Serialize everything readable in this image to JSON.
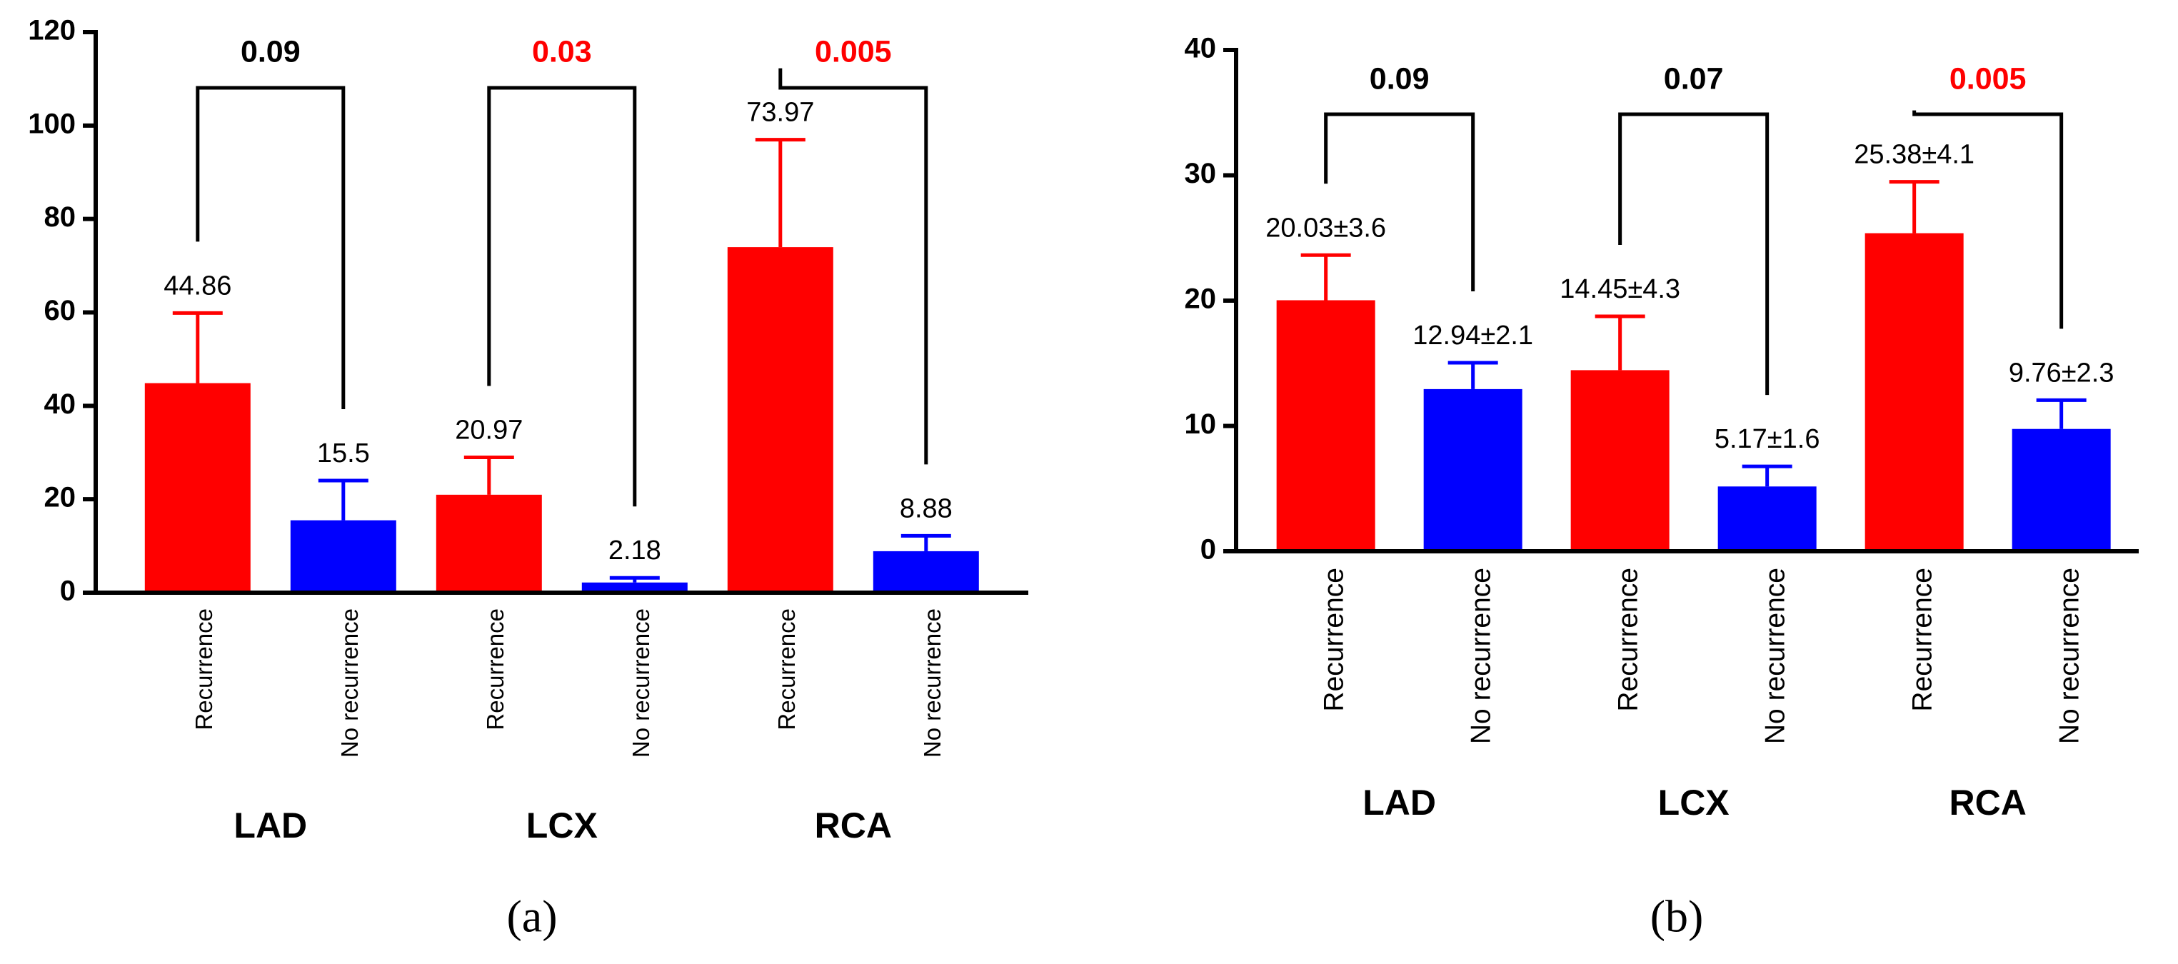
{
  "chart_data": [
    {
      "type": "bar",
      "caption": "(a)",
      "groups": [
        "LAD",
        "LCX",
        "RCA"
      ],
      "categories": [
        "Recurrence",
        "No recurrence",
        "Recurrence",
        "No recurrence",
        "Recurrence",
        "No recurrence"
      ],
      "values": [
        44.86,
        15.5,
        20.97,
        2.18,
        73.97,
        8.88
      ],
      "errors": [
        15,
        8.5,
        8,
        1,
        23,
        3.3
      ],
      "colors": [
        "#ff0000",
        "#0000ff",
        "#ff0000",
        "#0000ff",
        "#ff0000",
        "#0000ff"
      ],
      "brackets": [
        {
          "label": "0.09",
          "color": "#000000"
        },
        {
          "label": "0.03",
          "color": "#ff0000"
        },
        {
          "label": "0.005",
          "color": "#ff0000"
        }
      ],
      "ylim": [
        0,
        120
      ],
      "yticks": [
        0,
        20,
        40,
        60,
        80,
        100,
        120
      ]
    },
    {
      "type": "bar",
      "caption": "(b)",
      "groups": [
        "LAD",
        "LCX",
        "RCA"
      ],
      "categories": [
        "Recurrence",
        "No recurrence",
        "Recurrence",
        "No recurrence",
        "Recurrence",
        "No recurrence"
      ],
      "values": [
        20.03,
        12.94,
        14.45,
        5.17,
        25.38,
        9.76
      ],
      "errors": [
        3.6,
        2.1,
        4.3,
        1.6,
        4.1,
        2.3
      ],
      "value_labels": [
        "20.03±3.6",
        "12.94±2.1",
        "14.45±4.3",
        "5.17±1.6",
        "25.38±4.1",
        "9.76±2.3"
      ],
      "colors": [
        "#ff0000",
        "#0000ff",
        "#ff0000",
        "#0000ff",
        "#ff0000",
        "#0000ff"
      ],
      "brackets": [
        {
          "label": "0.09",
          "color": "#000000"
        },
        {
          "label": "0.07",
          "color": "#000000"
        },
        {
          "label": "0.005",
          "color": "#ff0000"
        }
      ],
      "ylim": [
        0,
        40
      ],
      "yticks": [
        0,
        10,
        20,
        30,
        40
      ]
    }
  ]
}
